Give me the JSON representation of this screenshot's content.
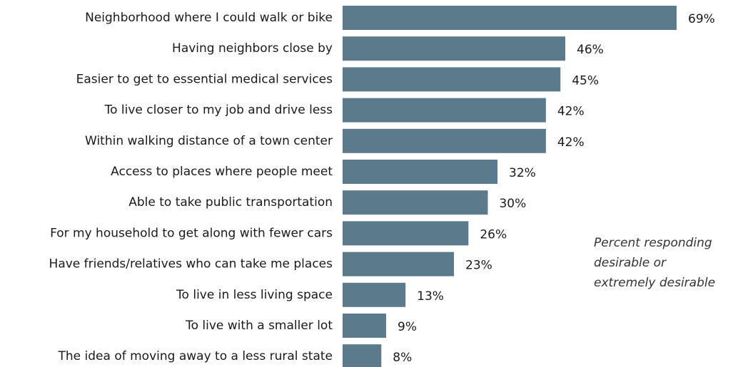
{
  "chart_data": {
    "type": "barh",
    "categories": [
      "Neighborhood where I could walk or bike",
      "Having neighbors close by",
      "Easier to get to essential medical services",
      "To live closer to my job and drive less",
      "Within walking distance of a town center",
      "Access to places where people meet",
      "Able to take public transportation",
      "For my household to get along with fewer cars",
      "Have friends/relatives who can take me places",
      "To live in less living space",
      "To live with a smaller lot",
      "The idea of moving away to a less rural state"
    ],
    "values": [
      69,
      46,
      45,
      42,
      42,
      32,
      30,
      26,
      23,
      13,
      9,
      8
    ],
    "value_labels": [
      "69%",
      "46%",
      "45%",
      "42%",
      "42%",
      "32%",
      "30%",
      "26%",
      "23%",
      "13%",
      "9%",
      "8%"
    ],
    "color": "#5b7a8c",
    "annotation": [
      "Percent responding",
      "desirable or",
      "extremely desirable"
    ]
  }
}
